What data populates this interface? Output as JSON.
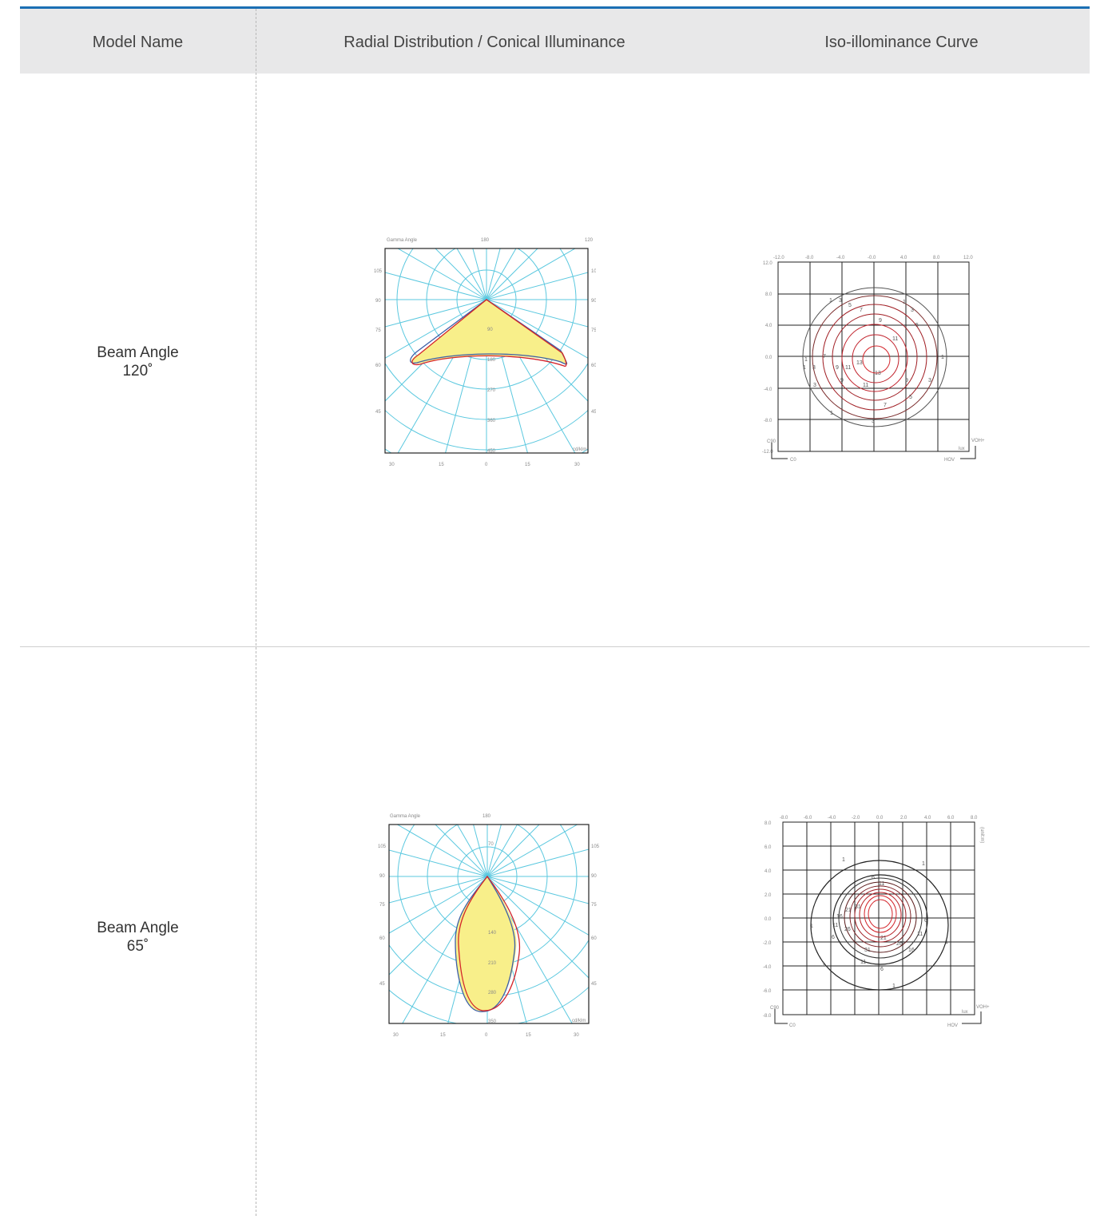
{
  "header": {
    "col1": "Model Name",
    "col2": "Radial Distribution / Conical Illuminance",
    "col3": "Iso-illominance Curve"
  },
  "rows": [
    {
      "model_line1": "Beam Angle",
      "model_line2": "120˚",
      "polar": {
        "corner_label": "Gamma Angle",
        "top_label": "180",
        "top_right": "120",
        "side_labels": [
          "105",
          "90",
          "75",
          "60",
          "45"
        ],
        "ring_labels": [
          "90",
          "180",
          "270",
          "360",
          "450"
        ],
        "bottom_labels": [
          "30",
          "15",
          "0",
          "15",
          "30"
        ],
        "unit": "cd/klm"
      },
      "iso": {
        "x_labels": [
          "-12.0",
          "-8.0",
          "-4.0",
          "-0.0",
          "4.0",
          "8.0",
          "12.0"
        ],
        "y_labels": [
          "12.0",
          "8.0",
          "4.0",
          "0.0",
          "-4.0",
          "-8.0",
          "-12.0"
        ],
        "contour_labels": [
          "1",
          "3",
          "5",
          "7",
          "9",
          "11",
          "13"
        ],
        "c90": "C90",
        "c0": "C0",
        "hov": "HOV",
        "voh": "VOH+",
        "unit": "lux"
      }
    },
    {
      "model_line1": "Beam Angle",
      "model_line2": "65˚",
      "polar": {
        "corner_label": "Gamma Angle",
        "top_label": "180",
        "side_labels": [
          "105",
          "90",
          "75",
          "60",
          "45"
        ],
        "ring_labels": [
          "70",
          "140",
          "210",
          "280",
          "350"
        ],
        "bottom_labels": [
          "30",
          "15",
          "0",
          "15",
          "30"
        ],
        "unit": "cd/klm"
      },
      "iso": {
        "x_labels": [
          "-8.0",
          "-6.0",
          "-4.0",
          "-2.0",
          "0.0",
          "2.0",
          "4.0",
          "6.0",
          "8.0"
        ],
        "y_labels": [
          "8.0",
          "6.0",
          "4.0",
          "2.0",
          "0.0",
          "-2.0",
          "-4.0",
          "-6.0",
          "-8.0"
        ],
        "contour_labels": [
          "1",
          "6",
          "11",
          "16",
          "21",
          "26",
          "31"
        ],
        "c90": "C90",
        "c0": "C0",
        "hov": "HOV",
        "voh": "VOH+",
        "unit": "lux",
        "side_unit": "(unit:m)"
      }
    }
  ],
  "colors": {
    "accent": "#1b6fb4",
    "grid": "#5bc8df",
    "fill": "#f8ef8a",
    "curve_red": "#d3242a",
    "curve_blue": "#3d5fa8",
    "contour": "#a01c22"
  }
}
